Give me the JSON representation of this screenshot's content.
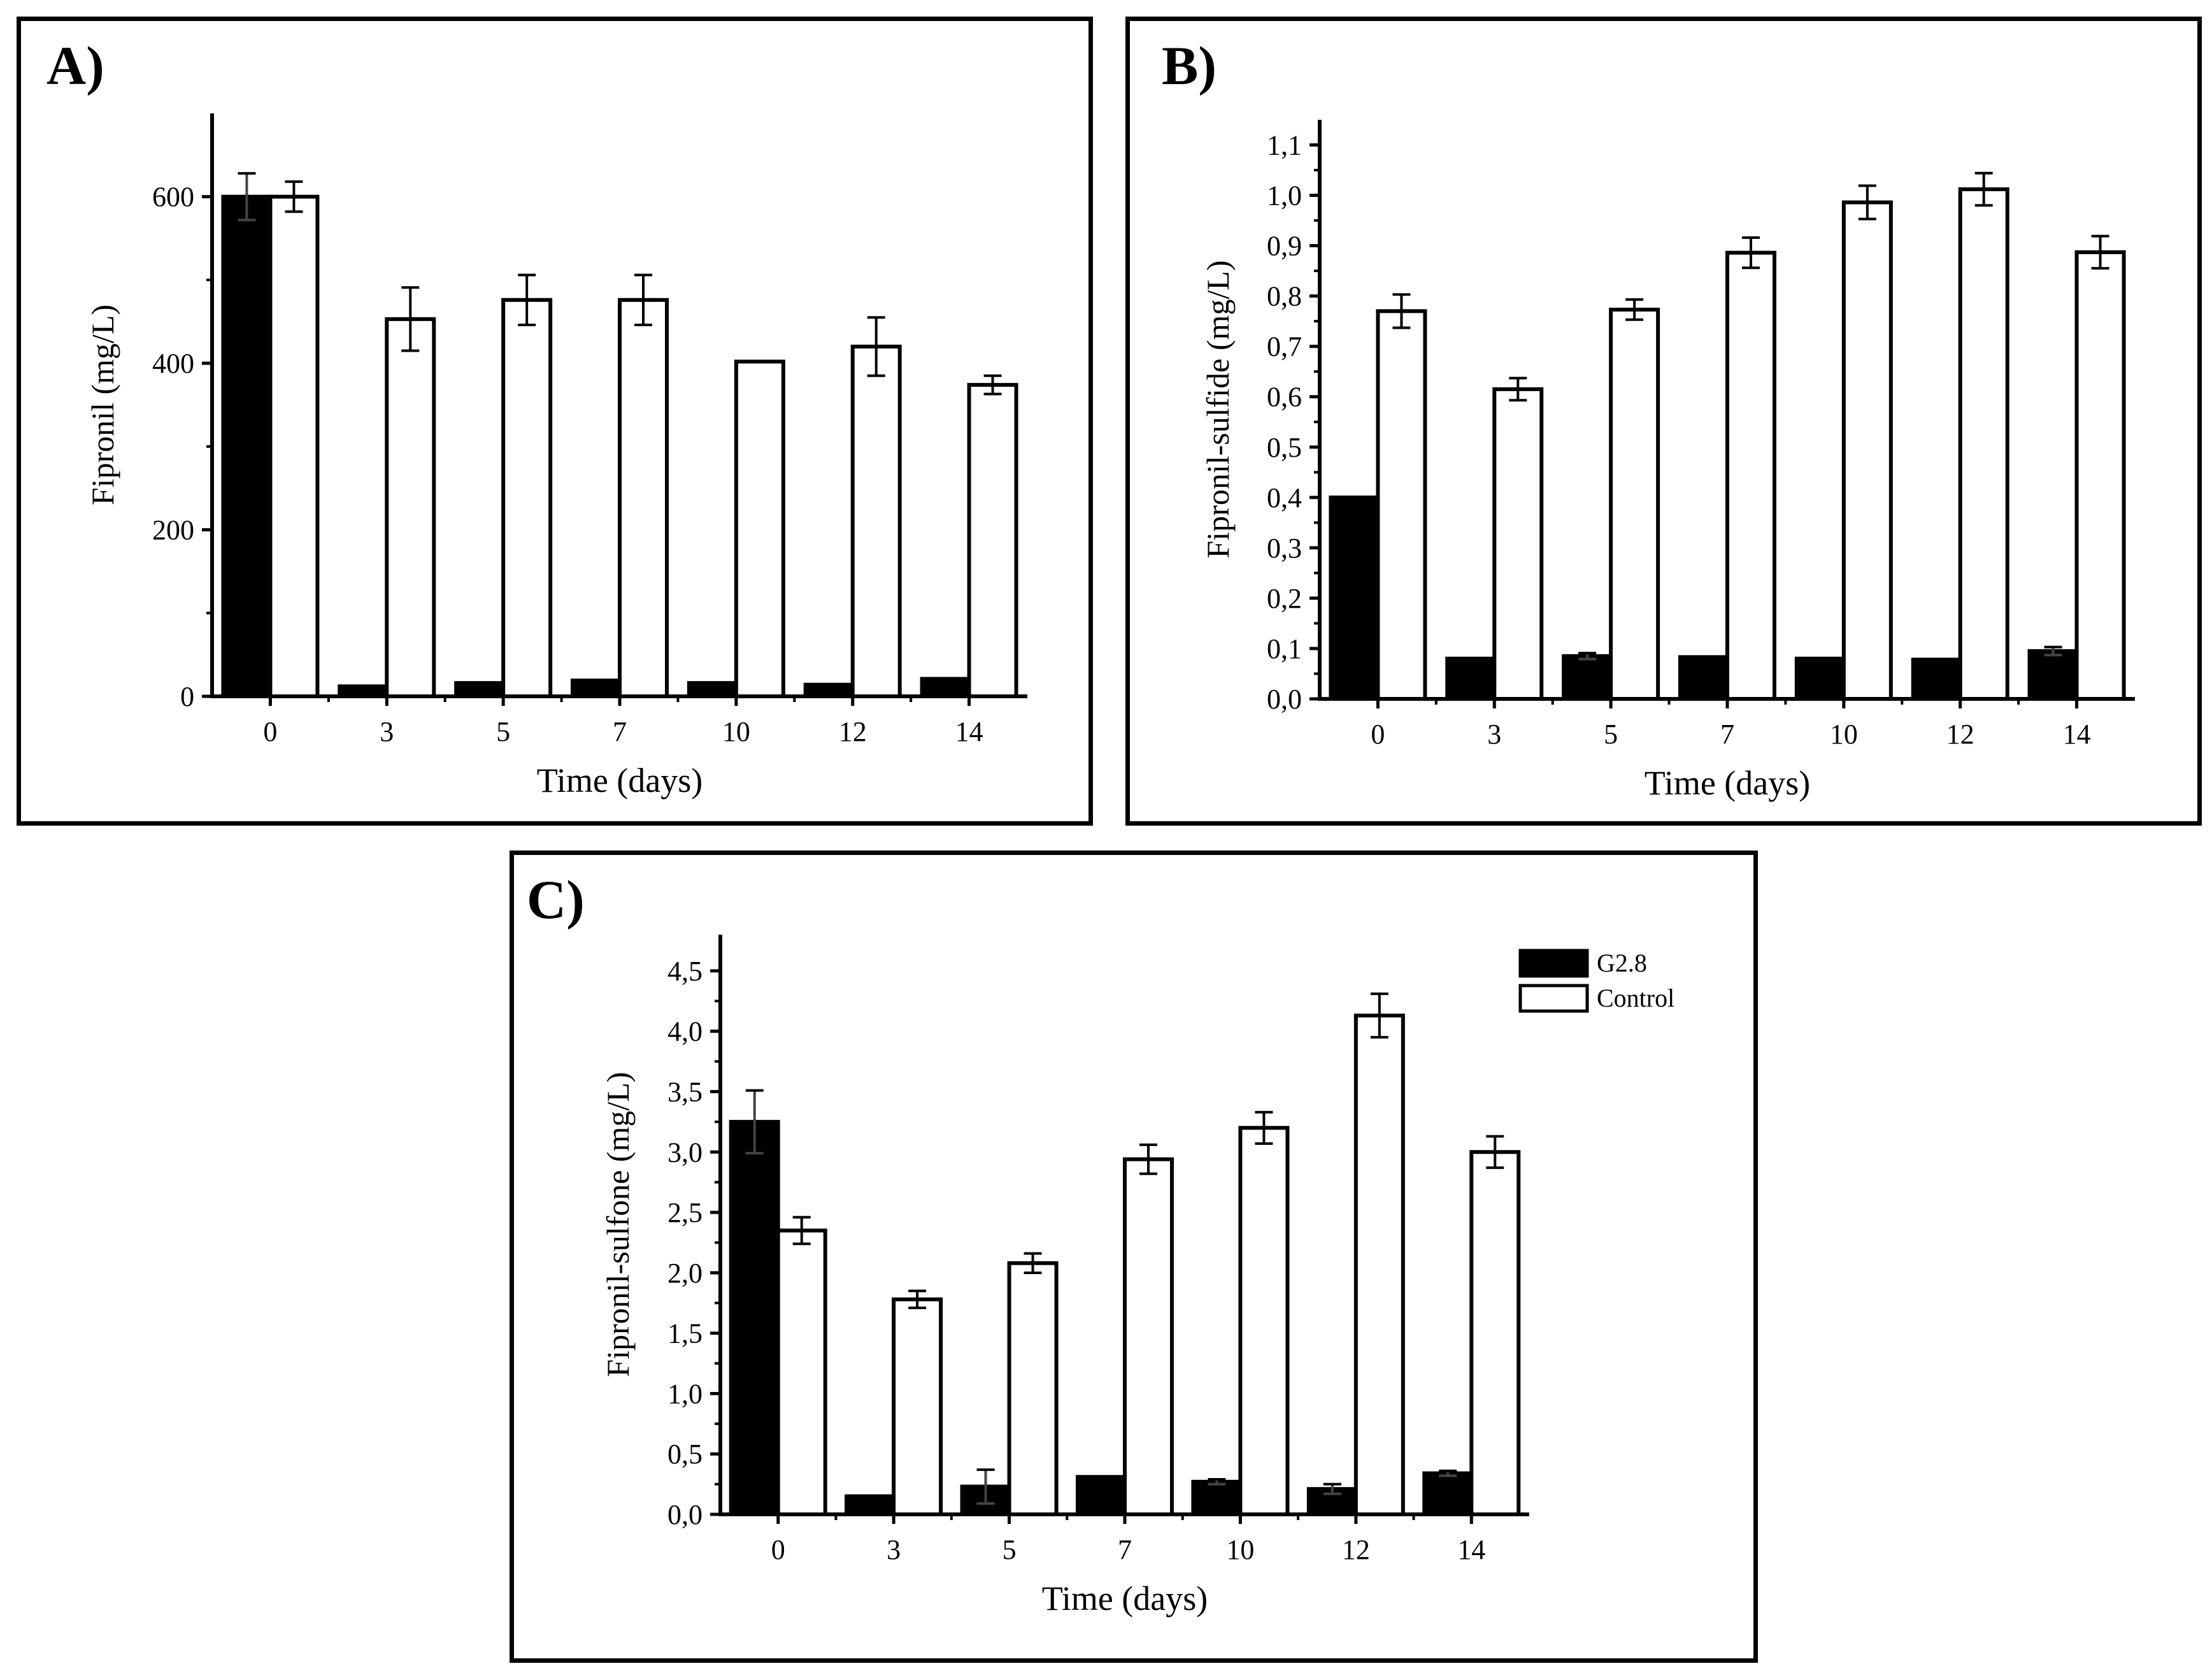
{
  "colors": {
    "g28": "#000000",
    "control": "#ffffff",
    "axis": "#000000"
  },
  "legend": {
    "position": "top-right of panel C",
    "items": [
      "G2.8",
      "Control"
    ]
  },
  "chart_data": [
    {
      "panel": "A)",
      "type": "bar",
      "categories": [
        "0",
        "3",
        "5",
        "7",
        "10",
        "12",
        "14"
      ],
      "xlabel": "Time (days)",
      "ylabel": "Fipronil (mg/L)",
      "ylim": [
        0,
        700
      ],
      "yticks": [
        0,
        200,
        400,
        600
      ],
      "yticklabels": [
        "0",
        "200",
        "400",
        "600"
      ],
      "series": [
        {
          "name": "G2.8",
          "values": [
            600,
            12,
            16,
            19,
            16,
            14,
            21
          ],
          "errors": [
            28,
            0,
            0,
            0,
            0,
            0,
            0
          ]
        },
        {
          "name": "Control",
          "values": [
            600,
            453,
            476,
            476,
            402,
            420,
            374
          ],
          "errors": [
            18,
            38,
            30,
            30,
            0,
            35,
            11
          ]
        }
      ]
    },
    {
      "panel": "B)",
      "type": "bar",
      "categories": [
        "0",
        "3",
        "5",
        "7",
        "10",
        "12",
        "14"
      ],
      "xlabel": "Time (days)",
      "ylabel": "Fipronil-sulfide (mg/L)",
      "ylim": [
        0,
        1.15
      ],
      "yticks": [
        0,
        0.1,
        0.2,
        0.3,
        0.4,
        0.5,
        0.6,
        0.7,
        0.8,
        0.9,
        1.0,
        1.1
      ],
      "yticklabels": [
        "0,0",
        "0,1",
        "0,2",
        "0,3",
        "0,4",
        "0,5",
        "0,6",
        "0,7",
        "0,8",
        "0,9",
        "1,0",
        "1,1"
      ],
      "series": [
        {
          "name": "G2.8",
          "values": [
            0.4,
            0.08,
            0.085,
            0.083,
            0.08,
            0.078,
            0.095
          ],
          "errors": [
            0,
            0,
            0.006,
            0,
            0,
            0,
            0.008
          ]
        },
        {
          "name": "Control",
          "values": [
            0.77,
            0.615,
            0.773,
            0.886,
            0.986,
            1.012,
            0.887
          ],
          "errors": [
            0.033,
            0.022,
            0.02,
            0.03,
            0.033,
            0.032,
            0.032
          ]
        }
      ]
    },
    {
      "panel": "C)",
      "type": "bar",
      "categories": [
        "0",
        "3",
        "5",
        "7",
        "10",
        "12",
        "14"
      ],
      "xlabel": "Time (days)",
      "ylabel": "Fipronil-sulfone (mg/L)",
      "ylim": [
        0,
        4.8
      ],
      "yticks": [
        0,
        0.5,
        1.0,
        1.5,
        2.0,
        2.5,
        3.0,
        3.5,
        4.0,
        4.5
      ],
      "yticklabels": [
        "0,0",
        "0,5",
        "1,0",
        "1,5",
        "2,0",
        "2,5",
        "3,0",
        "3,5",
        "4,0",
        "4,5"
      ],
      "series": [
        {
          "name": "G2.8",
          "values": [
            3.25,
            0.15,
            0.23,
            0.31,
            0.27,
            0.21,
            0.34
          ],
          "errors": [
            0.26,
            0,
            0.14,
            0,
            0.02,
            0.04,
            0.02
          ]
        },
        {
          "name": "Control",
          "values": [
            2.35,
            1.78,
            2.08,
            2.94,
            3.2,
            4.13,
            3.0
          ],
          "errors": [
            0.11,
            0.07,
            0.08,
            0.12,
            0.13,
            0.18,
            0.13
          ]
        }
      ]
    }
  ]
}
